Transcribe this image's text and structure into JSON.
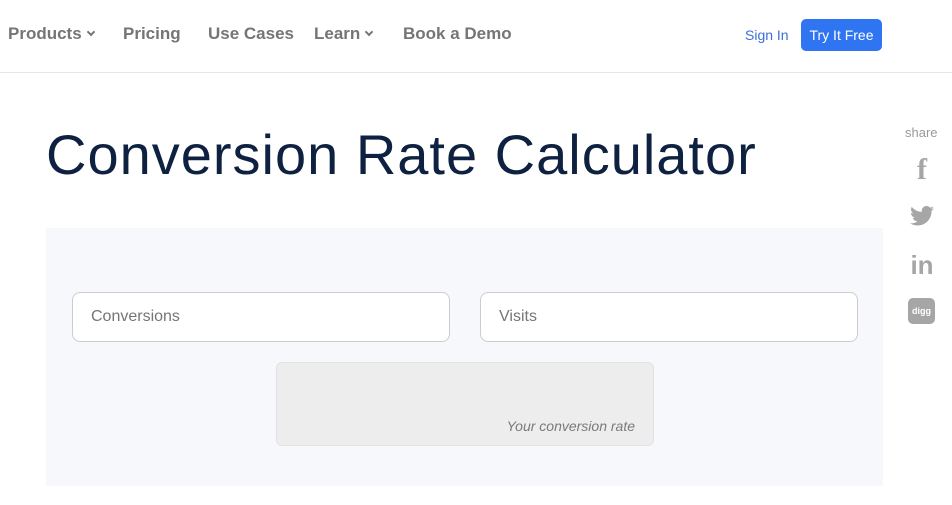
{
  "nav": {
    "items": [
      "Products",
      "Pricing",
      "Use Cases",
      "Learn",
      "Book a Demo"
    ],
    "sign_in": "Sign In",
    "cta": "Try It Free"
  },
  "page": {
    "title": "Conversion Rate Calculator"
  },
  "calculator": {
    "conversions_placeholder": "Conversions",
    "visits_placeholder": "Visits",
    "result_placeholder": "Your conversion rate"
  },
  "share": {
    "label": "share",
    "icons": [
      "facebook-icon",
      "twitter-icon",
      "linkedin-icon",
      "digg-icon"
    ],
    "digg_text": "digg"
  },
  "colors": {
    "accent": "#2f74f0",
    "title": "#0f2140"
  }
}
